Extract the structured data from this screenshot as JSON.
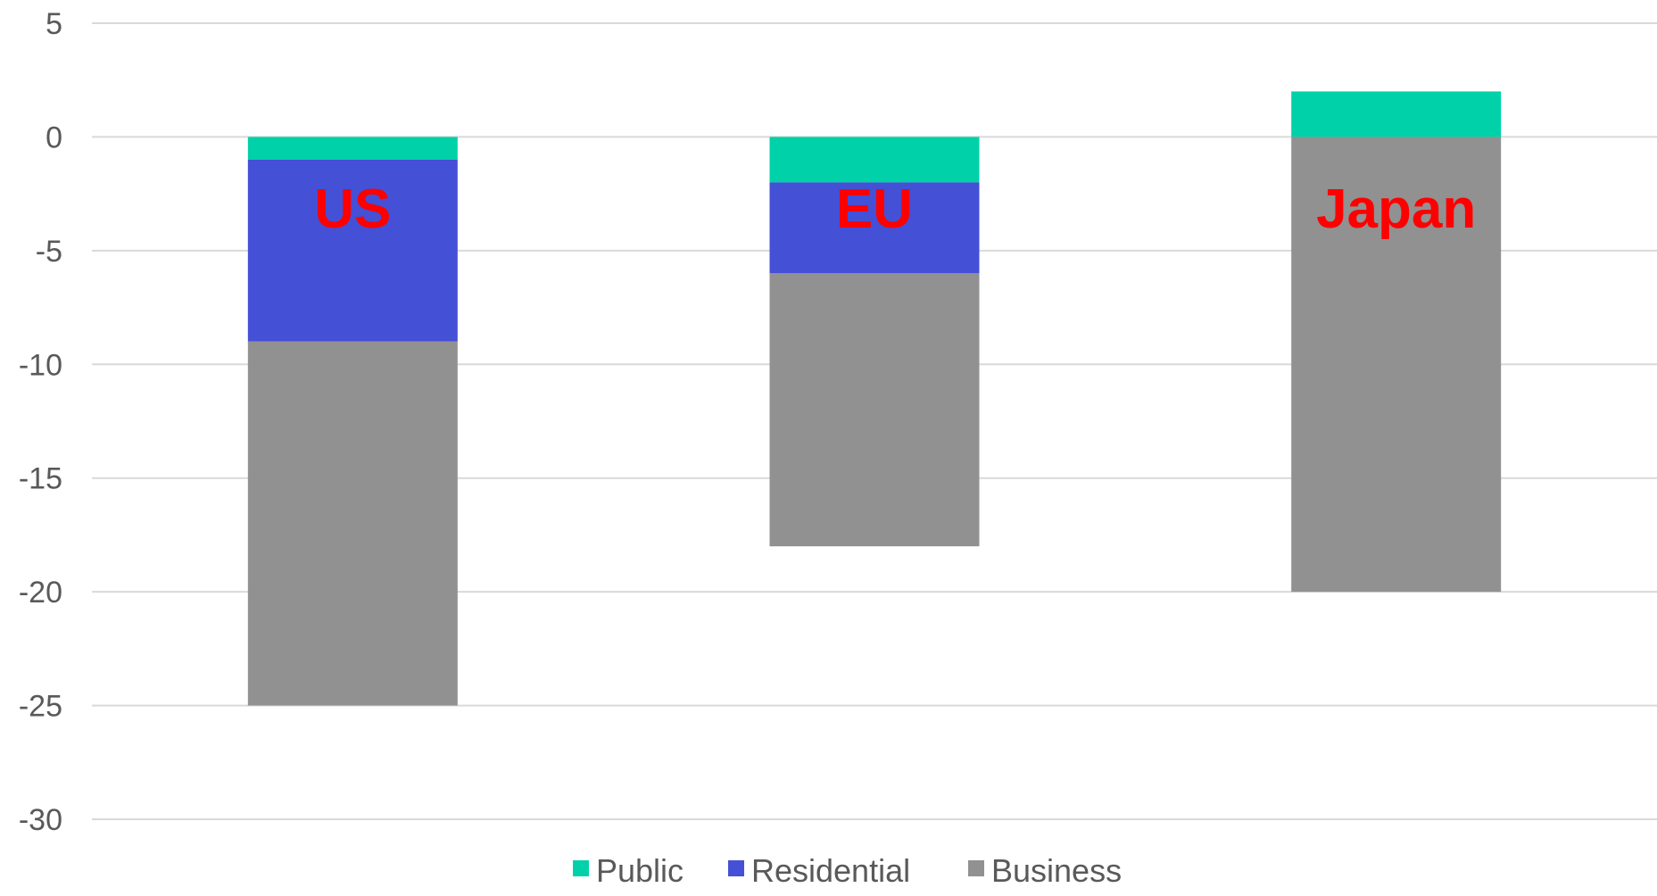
{
  "chart_data": {
    "type": "bar",
    "stacked": true,
    "categories": [
      "US",
      "EU",
      "Japan"
    ],
    "series": [
      {
        "name": "Public",
        "color": "#00D1A8",
        "values": [
          -1,
          -2,
          2
        ]
      },
      {
        "name": "Residential",
        "color": "#4450D6",
        "values": [
          -8,
          -4,
          0
        ]
      },
      {
        "name": "Business",
        "color": "#919191",
        "values": [
          -16,
          -12,
          -20
        ]
      }
    ],
    "ylim": [
      -30,
      5
    ],
    "yticks": [
      5,
      0,
      -5,
      -10,
      -15,
      -20,
      -25,
      -30
    ],
    "grid": true,
    "legend": "bottom",
    "title": "",
    "xlabel": "",
    "ylabel": "",
    "category_label_color": "#FF0000",
    "gridline_color": "#D9D9D9"
  }
}
